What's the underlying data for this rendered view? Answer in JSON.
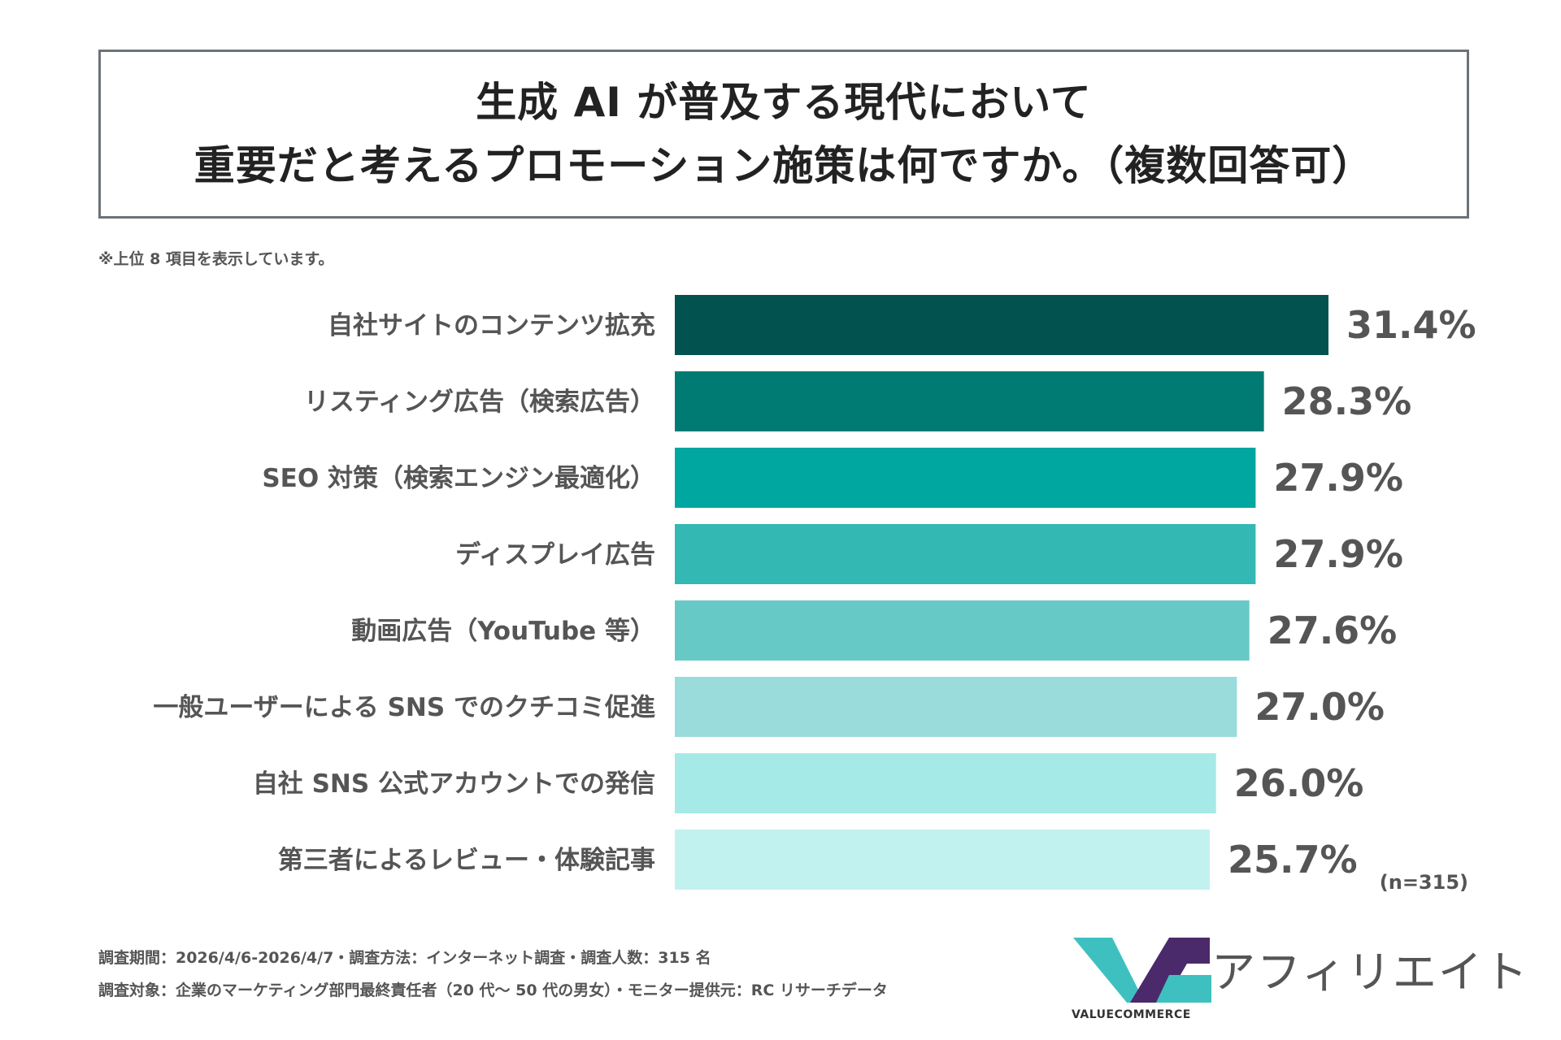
{
  "header": {
    "title_line1": "生成 AI が普及する現代において",
    "title_line2": "重要だと考えるプロモーション施策は何ですか。（複数回答可）"
  },
  "note": "※上位 8 項目を表示しています。",
  "chart_data": {
    "type": "bar",
    "orientation": "horizontal",
    "categories": [
      "自社サイトのコンテンツ拡充",
      "リスティング広告（検索広告）",
      "SEO 対策（検索エンジン最適化）",
      "ディスプレイ広告",
      "動画広告（YouTube 等）",
      "一般ユーザーによる SNS でのクチコミ促進",
      "自社 SNS 公式アカウントでの発信",
      "第三者によるレビュー・体験記事"
    ],
    "values": [
      31.4,
      28.3,
      27.9,
      27.9,
      27.6,
      27.0,
      26.0,
      25.7
    ],
    "value_labels": [
      "31.4%",
      "28.3%",
      "27.9%",
      "27.9%",
      "27.6%",
      "27.0%",
      "26.0%",
      "25.7%"
    ],
    "colors": [
      "#02524f",
      "#007b73",
      "#00a6a0",
      "#33b8b4",
      "#66c9c6",
      "#99dcdb",
      "#a6eae8",
      "#c2f2ef"
    ],
    "xlim": [
      0,
      31.4
    ]
  },
  "sample_size": "(n=315)",
  "footer": {
    "line1": "調査期間：2026/4/6-2026/4/7・調査方法：インターネット調査・調査人数：315 名",
    "line2": "調査対象：企業のマーケティング部門最終責任者（20 代～ 50 代の男女）・モニター提供元：RC リサーチデータ"
  },
  "logo": {
    "text": "アフィリエイト",
    "brand": "VALUECOMMERCE",
    "colors": {
      "teal": "#3fc0c0",
      "purple": "#4b2a6b"
    }
  }
}
